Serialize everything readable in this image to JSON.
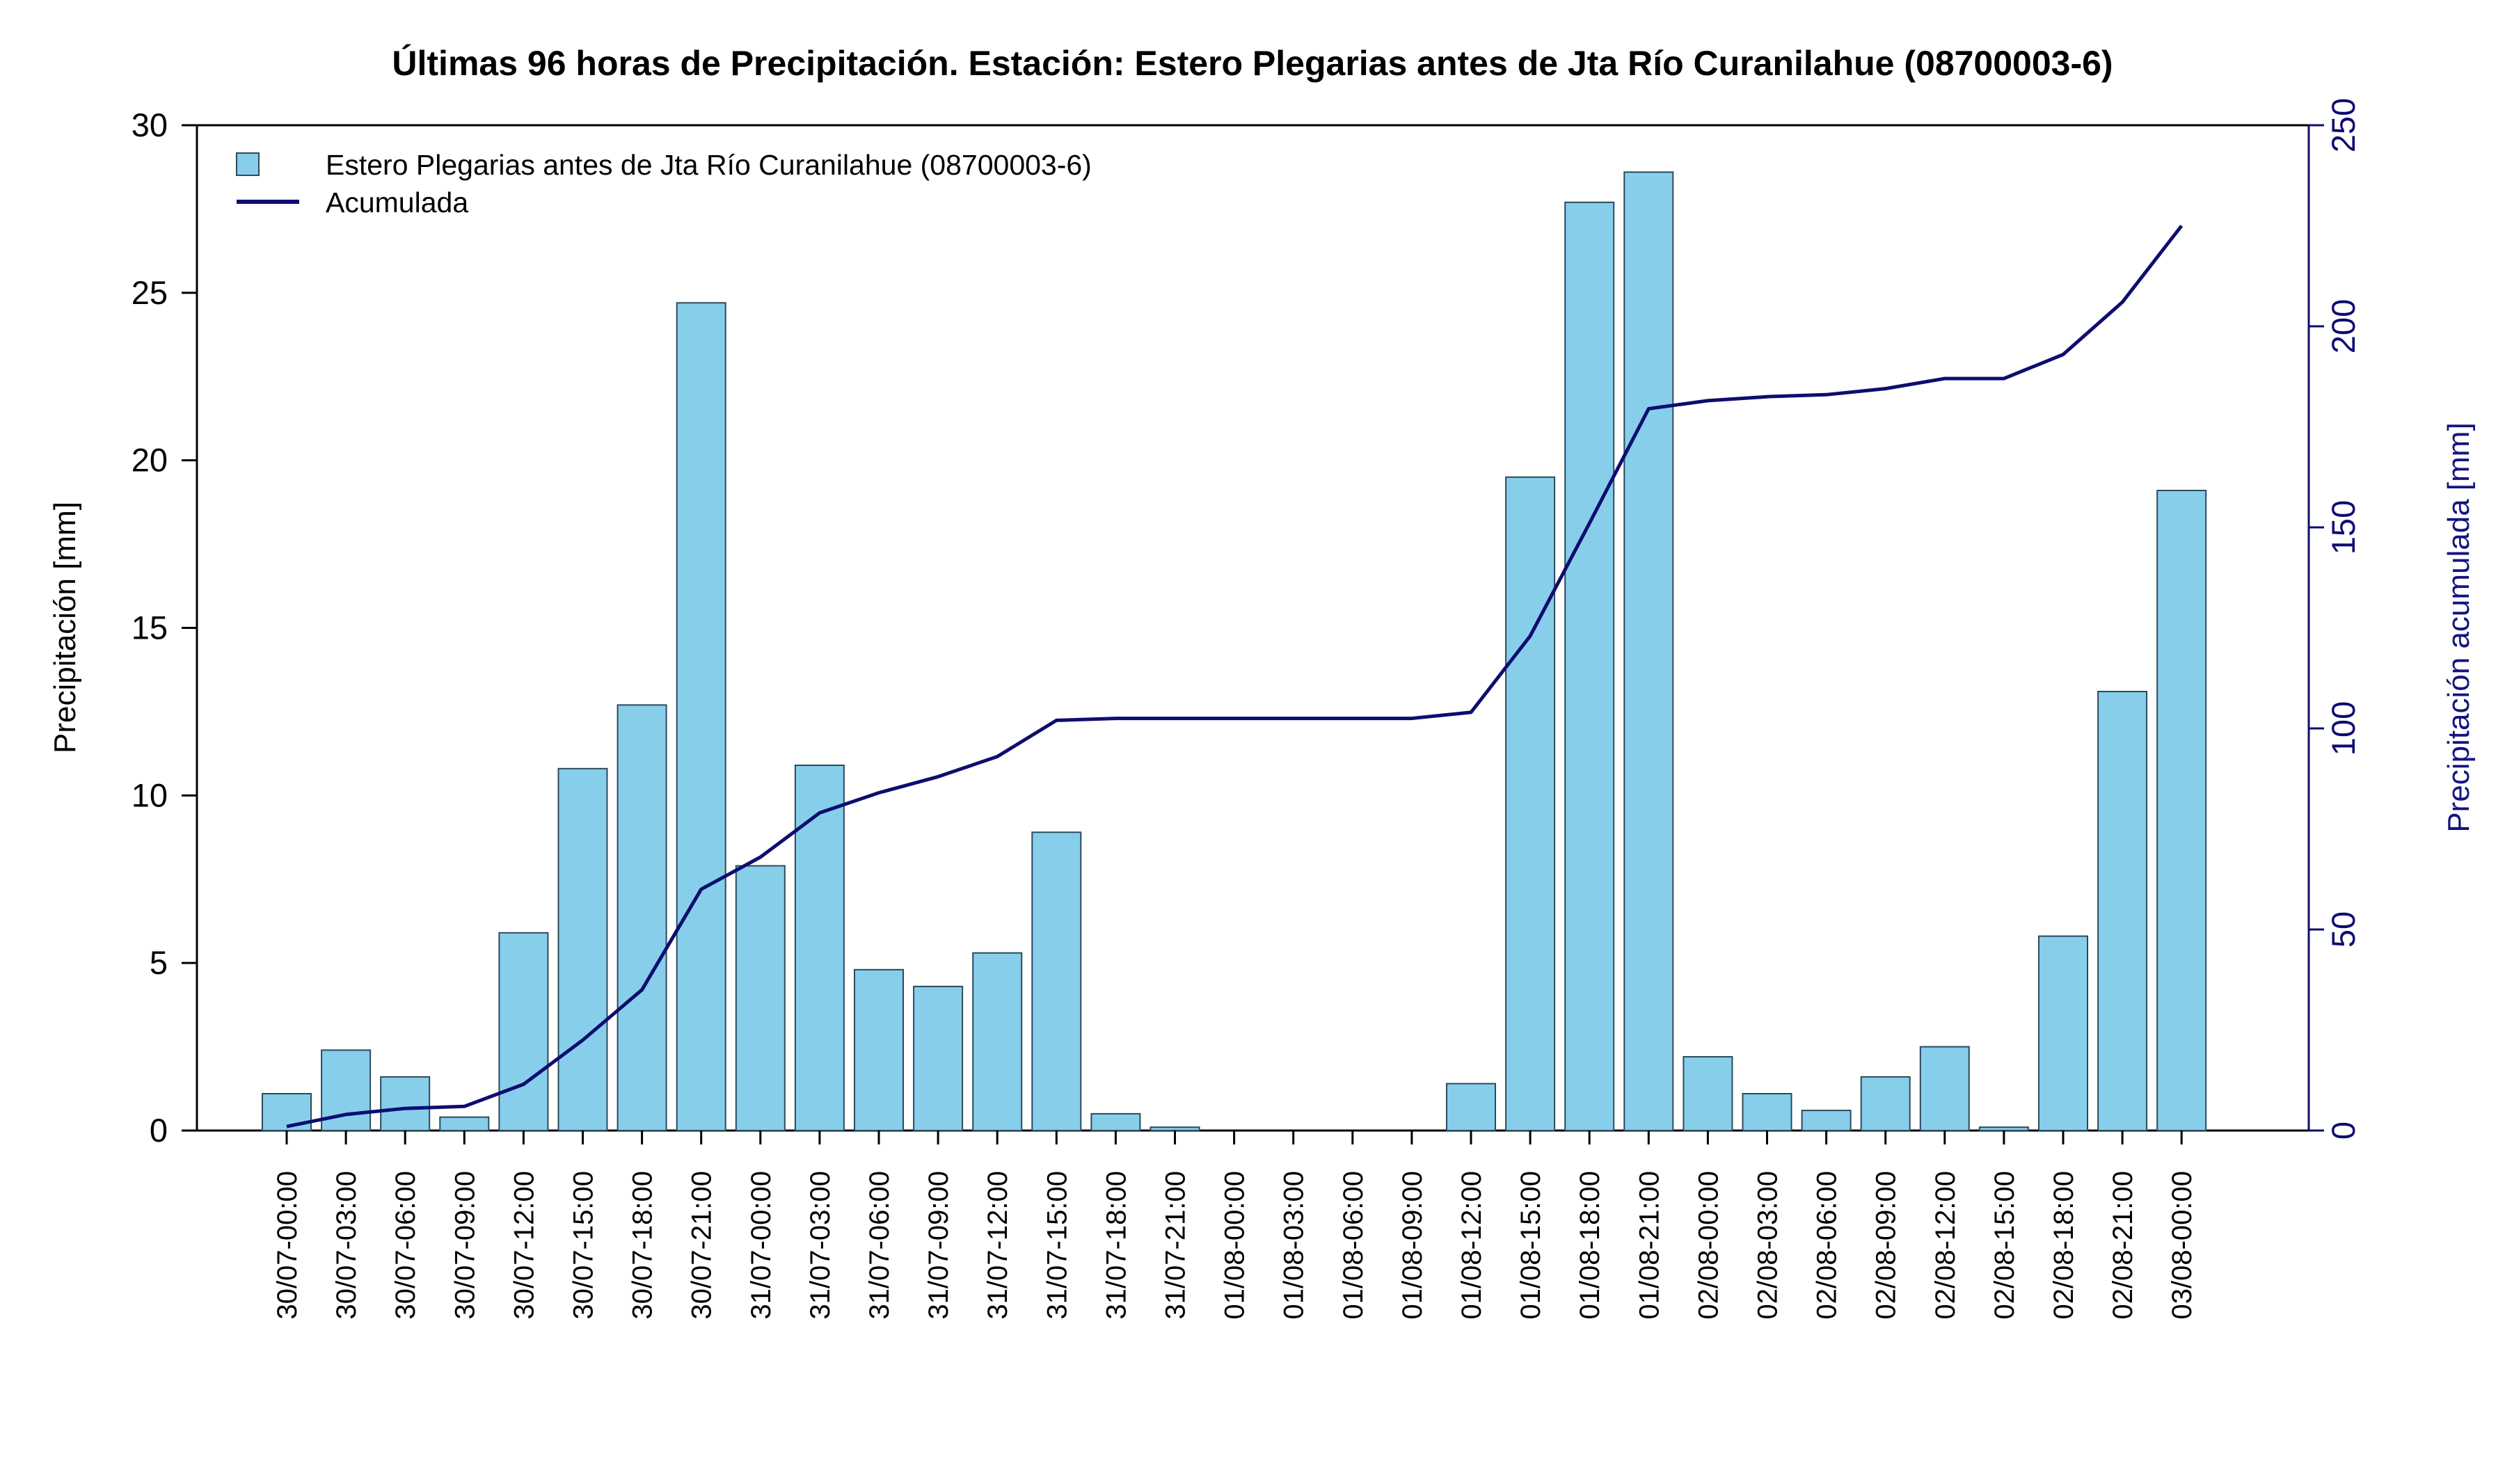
{
  "chart_data": {
    "type": "bar",
    "title": "Últimas 96 horas de Precipitación. Estación: Estero Plegarias antes de Jta Río Curanilahue (08700003-6)",
    "ylabel": "Precipitación [mm]",
    "ylabel_right": "Precipitación acumulada [mm]",
    "ylim": [
      0,
      30
    ],
    "ylim_right": [
      0,
      250
    ],
    "yticks": [
      "0",
      "5",
      "10",
      "15",
      "20",
      "25",
      "30"
    ],
    "yticks_right": [
      "0",
      "50",
      "100",
      "150",
      "200",
      "250"
    ],
    "grid": false,
    "legend_position": "top-left",
    "categories": [
      "30/07-00:00",
      "30/07-03:00",
      "30/07-06:00",
      "30/07-09:00",
      "30/07-12:00",
      "30/07-15:00",
      "30/07-18:00",
      "30/07-21:00",
      "31/07-00:00",
      "31/07-03:00",
      "31/07-06:00",
      "31/07-09:00",
      "31/07-12:00",
      "31/07-15:00",
      "31/07-18:00",
      "31/07-21:00",
      "01/08-00:00",
      "01/08-03:00",
      "01/08-06:00",
      "01/08-09:00",
      "01/08-12:00",
      "01/08-15:00",
      "01/08-18:00",
      "01/08-21:00",
      "02/08-00:00",
      "02/08-03:00",
      "02/08-06:00",
      "02/08-09:00",
      "02/08-12:00",
      "02/08-15:00",
      "02/08-18:00",
      "02/08-21:00",
      "03/08-00:00"
    ],
    "series": [
      {
        "name": "Estero Plegarias antes de Jta Río Curanilahue (08700003-6)",
        "kind": "bar",
        "axis": "left",
        "color": "#87ceeb",
        "values": [
          1.1,
          2.4,
          1.6,
          0.4,
          5.9,
          10.8,
          12.7,
          24.7,
          7.9,
          10.9,
          4.8,
          4.3,
          5.3,
          8.9,
          0.5,
          0.1,
          0,
          0,
          0,
          0,
          1.4,
          19.5,
          27.7,
          28.6,
          2.2,
          1.1,
          0.6,
          1.6,
          2.5,
          0.1,
          5.8,
          13.1,
          19.1
        ]
      },
      {
        "name": "Acumulada",
        "kind": "line",
        "axis": "right",
        "color": "#0d0d70",
        "values": [
          1,
          4,
          5.5,
          6,
          11.5,
          22.5,
          35,
          60,
          68,
          79,
          84,
          88,
          93,
          102,
          102.5,
          102.5,
          102.5,
          102.5,
          102.5,
          102.5,
          104,
          123,
          151,
          179.5,
          181.5,
          182.5,
          183,
          184.5,
          187,
          187,
          193,
          206,
          225
        ]
      }
    ]
  }
}
